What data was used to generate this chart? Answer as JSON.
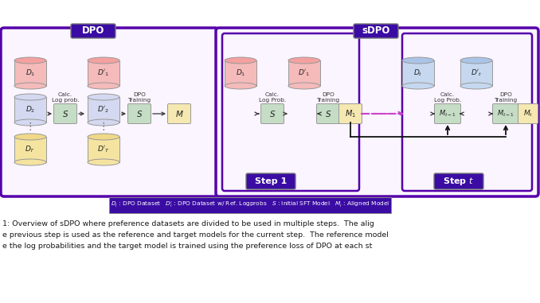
{
  "bg_color": "#ffffff",
  "border_color": "#5500aa",
  "box_bg": "#3a0ca3",
  "inner_bg": "#faf5ff",
  "cylinder_pink_top": "#f5a0a0",
  "cylinder_pink_body": "#f5baba",
  "cylinder_blue_top": "#aac4e8",
  "cylinder_blue_body": "#c5d8f0",
  "cylinder_yellow_top": "#f0d888",
  "cylinder_yellow_body": "#f5e4a0",
  "box_green": "#c5dcc5",
  "box_yellow": "#f5e8b0",
  "arrow_dark": "#111111",
  "dashed_color": "#cc44cc",
  "white_text": "#ffffff",
  "dark_text": "#333333",
  "legend_text": "$D_i$ : DPO Dataset   $D_i^{\\prime}$ : DPO Dataset w/ Ref. Logprobs   $S$ : Initial SFT Model   $M_i$ : Aligned Model",
  "cap1": "1: Overview of sDPO where preference datasets are divided to be used in multiple steps.  The alig",
  "cap2": "e previous step is used as the reference and target models for the current step.  The reference model",
  "cap3": "e the log probabilities and the target model is trained using the preference loss of DPO at each st"
}
